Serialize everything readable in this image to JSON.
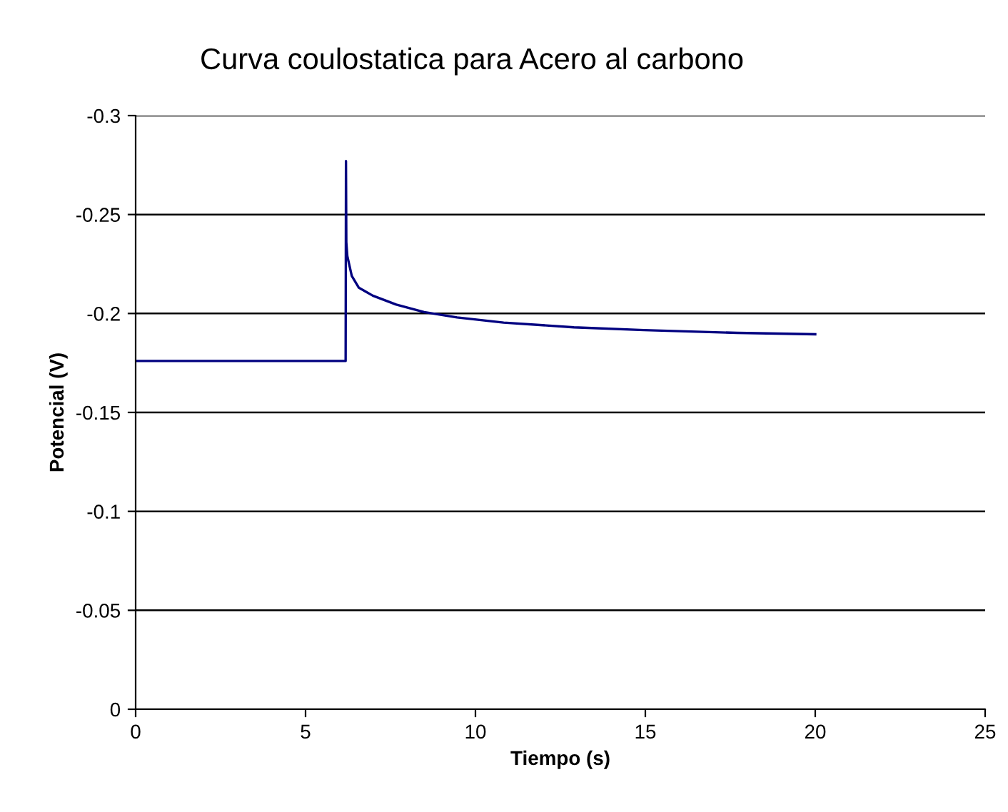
{
  "chart_data": {
    "type": "line",
    "title": "Curva coulostatica para Acero al carbono",
    "xlabel": "Tiempo (s)",
    "ylabel": "Potencial (V)",
    "series": [
      {
        "color": "#000080",
        "x": [
          0,
          1,
          2,
          3,
          4,
          5,
          6.18,
          6.19,
          6.2,
          6.23,
          6.36,
          6.57,
          6.98,
          7.67,
          8.49,
          9.46,
          10.83,
          12.9,
          14.96,
          17.7,
          20
        ],
        "values": [
          -0.176,
          -0.176,
          -0.176,
          -0.176,
          -0.176,
          -0.176,
          -0.176,
          -0.277,
          -0.236,
          -0.229,
          -0.219,
          -0.213,
          -0.209,
          -0.2045,
          -0.2007,
          -0.198,
          -0.1954,
          -0.193,
          -0.1916,
          -0.1902,
          -0.1895
        ]
      }
    ],
    "xlim": [
      0,
      25
    ],
    "xticks": [
      0,
      5,
      10,
      15,
      20,
      25
    ],
    "ylim": [
      0,
      -0.3
    ],
    "yticks": [
      0,
      -0.05,
      -0.1,
      -0.15,
      -0.2,
      -0.25,
      -0.3
    ],
    "grid": "y",
    "legend": false
  }
}
